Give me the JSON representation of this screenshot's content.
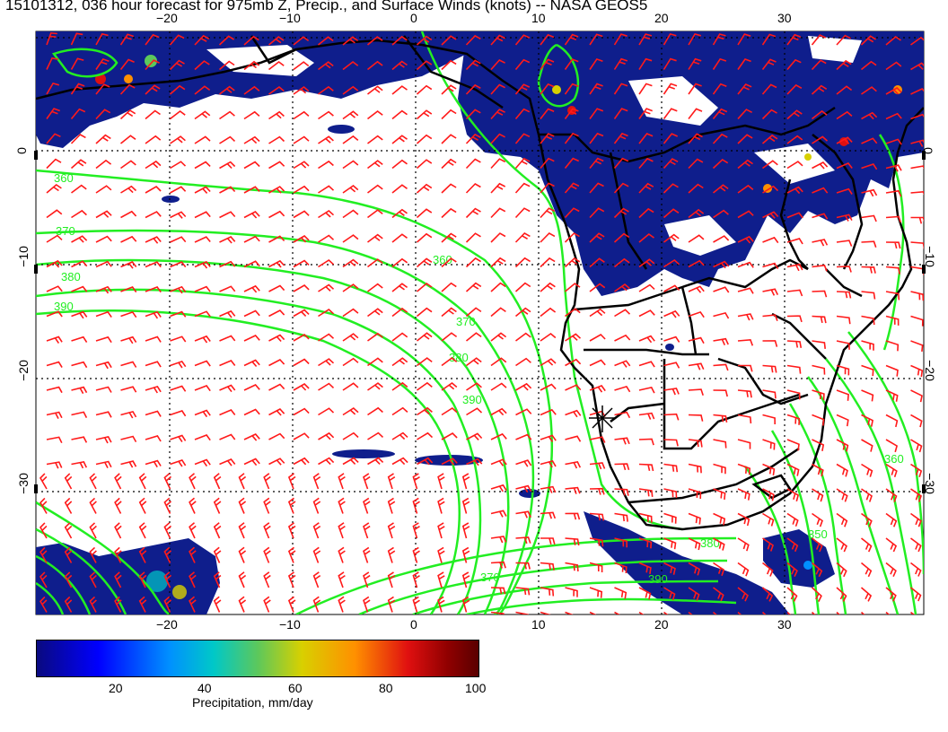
{
  "title": "15101312, 036 hour forecast for 975mb Z, Precip., and Surface Winds (knots) -- NASA GEOS5",
  "map": {
    "lon_ticks_top": [
      "−20",
      "−10",
      "0",
      "10",
      "20",
      "30"
    ],
    "lon_ticks_bottom": [
      "−20",
      "−10",
      "0",
      "10",
      "20",
      "30"
    ],
    "lat_ticks_left": [
      "0",
      "−10",
      "−20",
      "−30"
    ],
    "lat_ticks_right": [
      "0",
      "−10",
      "−20",
      "−30"
    ],
    "contour_labels": [
      "360",
      "370",
      "380",
      "390",
      "360",
      "370",
      "380",
      "390",
      "360",
      "380",
      "370",
      "350",
      "390"
    ],
    "colors": {
      "contour": "#22ee22",
      "wind_barbs": "#ff1a1a",
      "precip_base": "#0f1e8c",
      "coastline": "#000000"
    }
  },
  "colorbar": {
    "ticks": [
      "20",
      "40",
      "60",
      "80",
      "100"
    ],
    "label": "Precipitation, mm/day"
  }
}
